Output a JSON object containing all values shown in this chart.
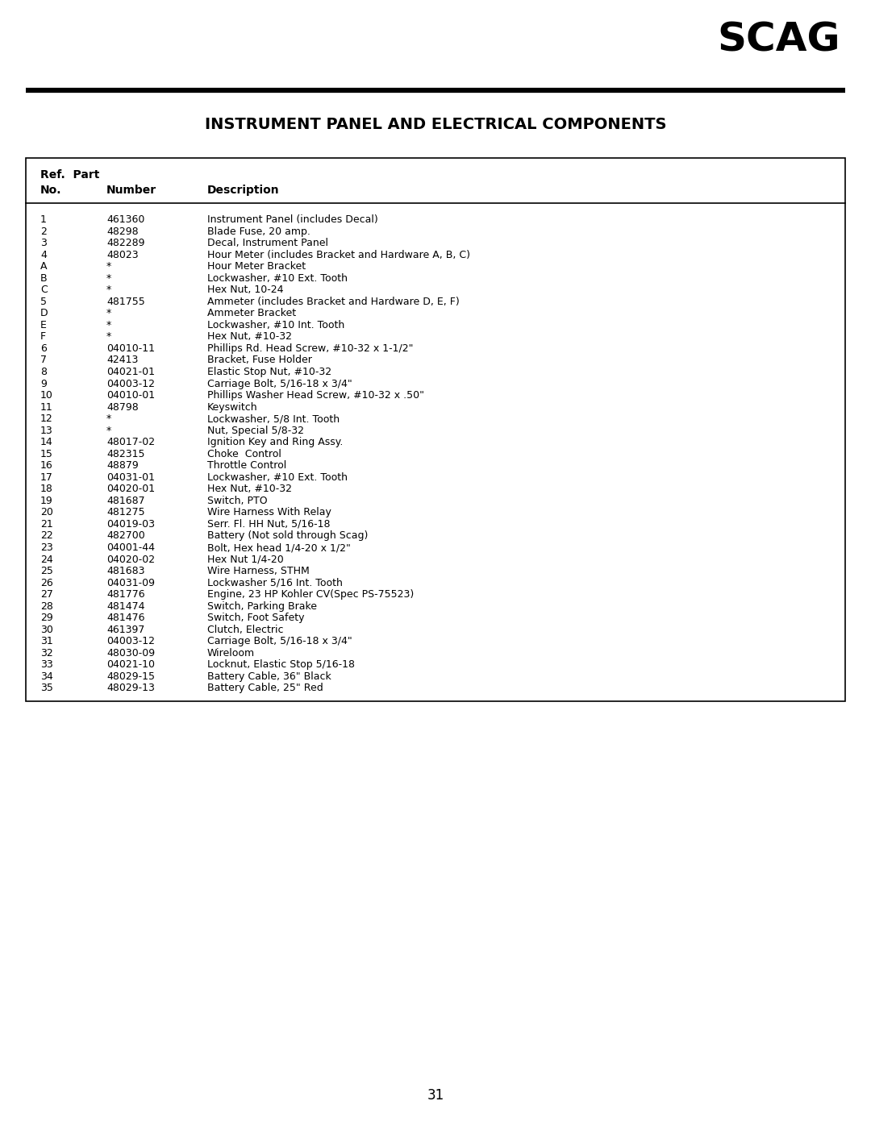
{
  "title": "INSTRUMENT PANEL AND ELECTRICAL COMPONENTS",
  "page_number": "31",
  "logo_text": "SCAG",
  "rows": [
    [
      "1",
      "461360",
      "Instrument Panel (includes Decal)"
    ],
    [
      "2",
      "48298",
      "Blade Fuse, 20 amp."
    ],
    [
      "3",
      "482289",
      "Decal, Instrument Panel"
    ],
    [
      "4",
      "48023",
      "Hour Meter (includes Bracket and Hardware A, B, C)"
    ],
    [
      "A",
      "*",
      "Hour Meter Bracket"
    ],
    [
      "B",
      "*",
      "Lockwasher, #10 Ext. Tooth"
    ],
    [
      "C",
      "*",
      "Hex Nut, 10-24"
    ],
    [
      "5",
      "481755",
      "Ammeter (includes Bracket and Hardware D, E, F)"
    ],
    [
      "D",
      "*",
      "Ammeter Bracket"
    ],
    [
      "E",
      "*",
      "Lockwasher, #10 Int. Tooth"
    ],
    [
      "F",
      "*",
      "Hex Nut, #10-32"
    ],
    [
      "6",
      "04010-11",
      "Phillips Rd. Head Screw, #10-32 x 1-1/2\""
    ],
    [
      "7",
      "42413",
      "Bracket, Fuse Holder"
    ],
    [
      "8",
      "04021-01",
      "Elastic Stop Nut, #10-32"
    ],
    [
      "9",
      "04003-12",
      "Carriage Bolt, 5/16-18 x 3/4\""
    ],
    [
      "10",
      "04010-01",
      "Phillips Washer Head Screw, #10-32 x .50\""
    ],
    [
      "11",
      "48798",
      "Keyswitch"
    ],
    [
      "12",
      "*",
      "Lockwasher, 5/8 Int. Tooth"
    ],
    [
      "13",
      "*",
      "Nut, Special 5/8-32"
    ],
    [
      "14",
      "48017-02",
      "Ignition Key and Ring Assy."
    ],
    [
      "15",
      "482315",
      "Choke  Control"
    ],
    [
      "16",
      "48879",
      "Throttle Control"
    ],
    [
      "17",
      "04031-01",
      "Lockwasher, #10 Ext. Tooth"
    ],
    [
      "18",
      "04020-01",
      "Hex Nut, #10-32"
    ],
    [
      "19",
      "481687",
      "Switch, PTO"
    ],
    [
      "20",
      "481275",
      "Wire Harness With Relay"
    ],
    [
      "21",
      "04019-03",
      "Serr. Fl. HH Nut, 5/16-18"
    ],
    [
      "22",
      "482700",
      "Battery (Not sold through Scag)"
    ],
    [
      "23",
      "04001-44",
      "Bolt, Hex head 1/4-20 x 1/2\""
    ],
    [
      "24",
      "04020-02",
      "Hex Nut 1/4-20"
    ],
    [
      "25",
      "481683",
      "Wire Harness, STHM"
    ],
    [
      "26",
      "04031-09",
      "Lockwasher 5/16 Int. Tooth"
    ],
    [
      "27",
      "481776",
      "Engine, 23 HP Kohler CV(Spec PS-75523)"
    ],
    [
      "28",
      "481474",
      "Switch, Parking Brake"
    ],
    [
      "29",
      "481476",
      "Switch, Foot Safety"
    ],
    [
      "30",
      "461397",
      "Clutch, Electric"
    ],
    [
      "31",
      "04003-12",
      "Carriage Bolt, 5/16-18 x 3/4\""
    ],
    [
      "32",
      "48030-09",
      "Wireloom"
    ],
    [
      "33",
      "04021-10",
      "Locknut, Elastic Stop 5/16-18"
    ],
    [
      "34",
      "48029-15",
      "Battery Cable, 36\" Black"
    ],
    [
      "35",
      "48029-13",
      "Battery Cable, 25\" Red"
    ]
  ],
  "bg_color": "#ffffff",
  "border_color": "#000000",
  "text_color": "#000000",
  "title_fontsize": 14,
  "header_fontsize": 10,
  "row_fontsize": 9,
  "logo_fontsize": 36,
  "page_num_fontsize": 12
}
